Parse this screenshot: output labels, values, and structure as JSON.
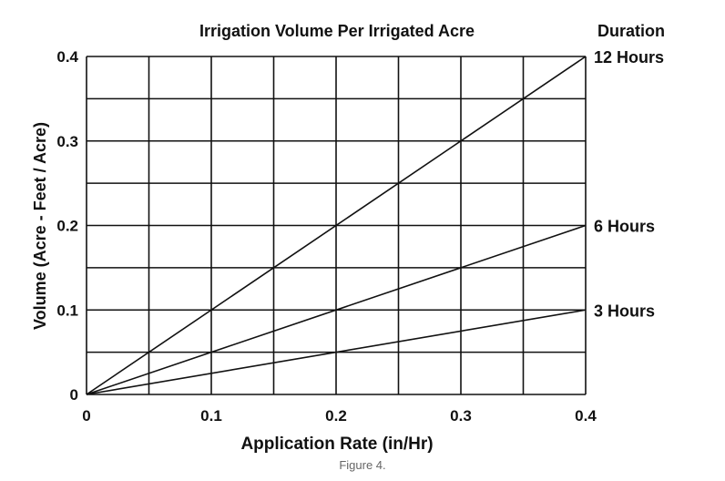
{
  "chart_data": {
    "type": "line",
    "title": "Irrigation Volume Per Irrigated Acre",
    "legend_title": "Duration",
    "xlabel": "Application Rate (in/Hr)",
    "ylabel": "Volume (Acre - Feet / Acre)",
    "xlim": [
      0,
      0.4
    ],
    "ylim": [
      0,
      0.4
    ],
    "x_ticks": [
      "0",
      "0.1",
      "0.2",
      "0.3",
      "0.4"
    ],
    "y_ticks": [
      "0",
      "0.1",
      "0.2",
      "0.3",
      "0.4"
    ],
    "grid": true,
    "series": [
      {
        "name": "12 Hours",
        "x": [
          0,
          0.4
        ],
        "y": [
          0,
          0.4
        ]
      },
      {
        "name": "6 Hours",
        "x": [
          0,
          0.4
        ],
        "y": [
          0,
          0.2
        ]
      },
      {
        "name": "3 Hours",
        "x": [
          0,
          0.4
        ],
        "y": [
          0,
          0.1
        ]
      }
    ],
    "colors": {
      "line": "#111111",
      "grid": "#111111"
    }
  },
  "caption": "Figure 4."
}
